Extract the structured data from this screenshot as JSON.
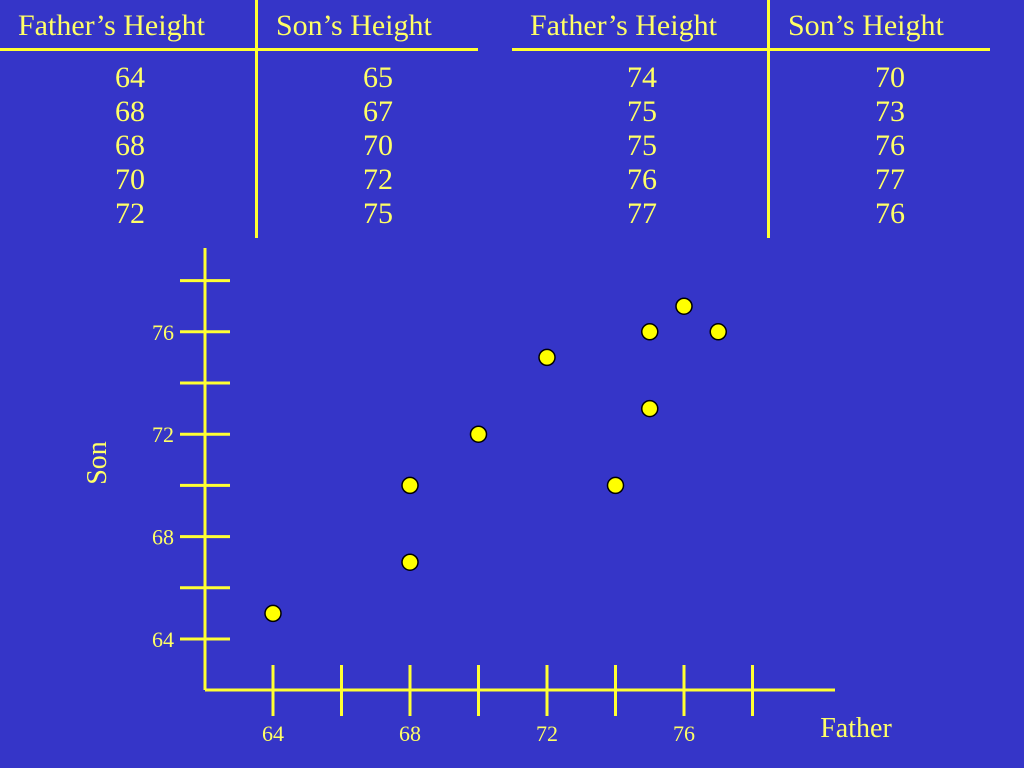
{
  "table_left": {
    "headers": [
      "Father’s Height",
      "Son’s Height"
    ],
    "father": [
      "64",
      "68",
      "68",
      "70",
      "72"
    ],
    "son": [
      "65",
      "67",
      "70",
      "72",
      "75"
    ]
  },
  "table_right": {
    "headers": [
      "Father’s Height",
      "Son’s Height"
    ],
    "father": [
      "74",
      "75",
      "75",
      "76",
      "77"
    ],
    "son": [
      "70",
      "73",
      "76",
      "77",
      "76"
    ]
  },
  "colors": {
    "background": "#3535c8",
    "axis": "#ffff33",
    "text": "#ffff66",
    "point": "#ffff00"
  },
  "chart_data": {
    "type": "scatter",
    "xlabel": "Father",
    "ylabel": "Son",
    "x_ticks": [
      64,
      66,
      68,
      70,
      72,
      74,
      76,
      78
    ],
    "x_tick_labels": [
      "64",
      "",
      "68",
      "",
      "72",
      "",
      "76",
      ""
    ],
    "y_ticks": [
      64,
      66,
      68,
      70,
      72,
      74,
      76,
      78
    ],
    "y_tick_labels": [
      "64",
      "",
      "68",
      "",
      "72",
      "",
      "76",
      ""
    ],
    "points": [
      {
        "x": 64,
        "y": 65
      },
      {
        "x": 68,
        "y": 67
      },
      {
        "x": 68,
        "y": 70
      },
      {
        "x": 70,
        "y": 72
      },
      {
        "x": 72,
        "y": 75
      },
      {
        "x": 74,
        "y": 70
      },
      {
        "x": 75,
        "y": 73
      },
      {
        "x": 75,
        "y": 76
      },
      {
        "x": 76,
        "y": 77
      },
      {
        "x": 77,
        "y": 76
      }
    ]
  }
}
